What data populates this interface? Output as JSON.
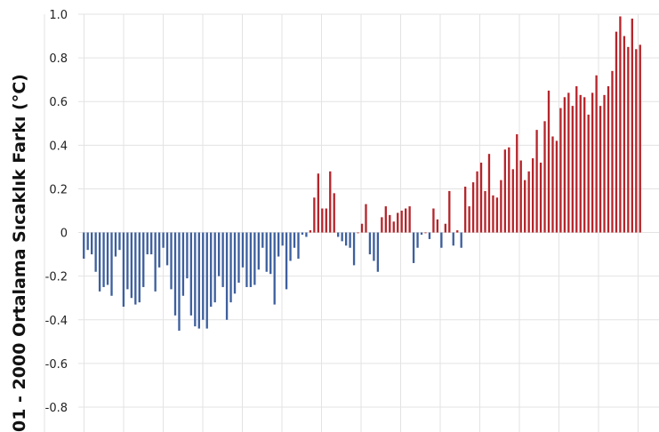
{
  "chart_data": {
    "type": "bar",
    "title": "",
    "xlabel": "",
    "ylabel": "01 - 2000 Ortalama Sıcaklık Farkı (°C)",
    "ylim": [
      -0.9,
      1.0
    ],
    "yticks": [
      1.0,
      0.8,
      0.6,
      0.4,
      0.2,
      0,
      -0.2,
      -0.4,
      -0.6,
      -0.8
    ],
    "ytick_labels": [
      "1.0",
      "0.8",
      "0.6",
      "0.4",
      "0.2",
      "0",
      "-0.2",
      "-0.4",
      "-0.6",
      "-0.8"
    ],
    "grid": true,
    "legend": false,
    "colors": {
      "positive": "#b5252b",
      "negative": "#3d5f9e",
      "grid": "#e3e3e3"
    },
    "values": [
      -0.12,
      -0.08,
      -0.1,
      -0.18,
      -0.27,
      -0.25,
      -0.24,
      -0.29,
      -0.11,
      -0.08,
      -0.34,
      -0.26,
      -0.3,
      -0.33,
      -0.32,
      -0.25,
      -0.1,
      -0.1,
      -0.27,
      -0.16,
      -0.07,
      -0.15,
      -0.26,
      -0.38,
      -0.45,
      -0.29,
      -0.21,
      -0.38,
      -0.43,
      -0.44,
      -0.4,
      -0.44,
      -0.34,
      -0.32,
      -0.2,
      -0.25,
      -0.4,
      -0.32,
      -0.28,
      -0.23,
      -0.16,
      -0.25,
      -0.25,
      -0.24,
      -0.17,
      -0.07,
      -0.18,
      -0.19,
      -0.33,
      -0.11,
      -0.06,
      -0.26,
      -0.13,
      -0.07,
      -0.12,
      -0.01,
      -0.02,
      0.01,
      0.16,
      0.27,
      0.11,
      0.11,
      0.28,
      0.18,
      -0.02,
      -0.04,
      -0.06,
      -0.07,
      -0.15,
      0.0,
      0.04,
      0.13,
      -0.1,
      -0.13,
      -0.18,
      0.07,
      0.12,
      0.08,
      0.05,
      0.09,
      0.1,
      0.11,
      0.12,
      -0.14,
      -0.07,
      -0.01,
      0.0,
      -0.03,
      0.11,
      0.06,
      -0.07,
      0.04,
      0.19,
      -0.06,
      0.01,
      -0.07,
      0.21,
      0.12,
      0.23,
      0.28,
      0.32,
      0.19,
      0.36,
      0.17,
      0.16,
      0.24,
      0.38,
      0.39,
      0.29,
      0.45,
      0.33,
      0.24,
      0.28,
      0.34,
      0.47,
      0.32,
      0.51,
      0.65,
      0.44,
      0.42,
      0.57,
      0.62,
      0.64,
      0.58,
      0.67,
      0.63,
      0.62,
      0.54,
      0.64,
      0.72,
      0.58,
      0.63,
      0.67,
      0.74,
      0.92,
      0.99,
      0.9,
      0.85,
      0.98,
      0.84,
      0.86
    ]
  }
}
